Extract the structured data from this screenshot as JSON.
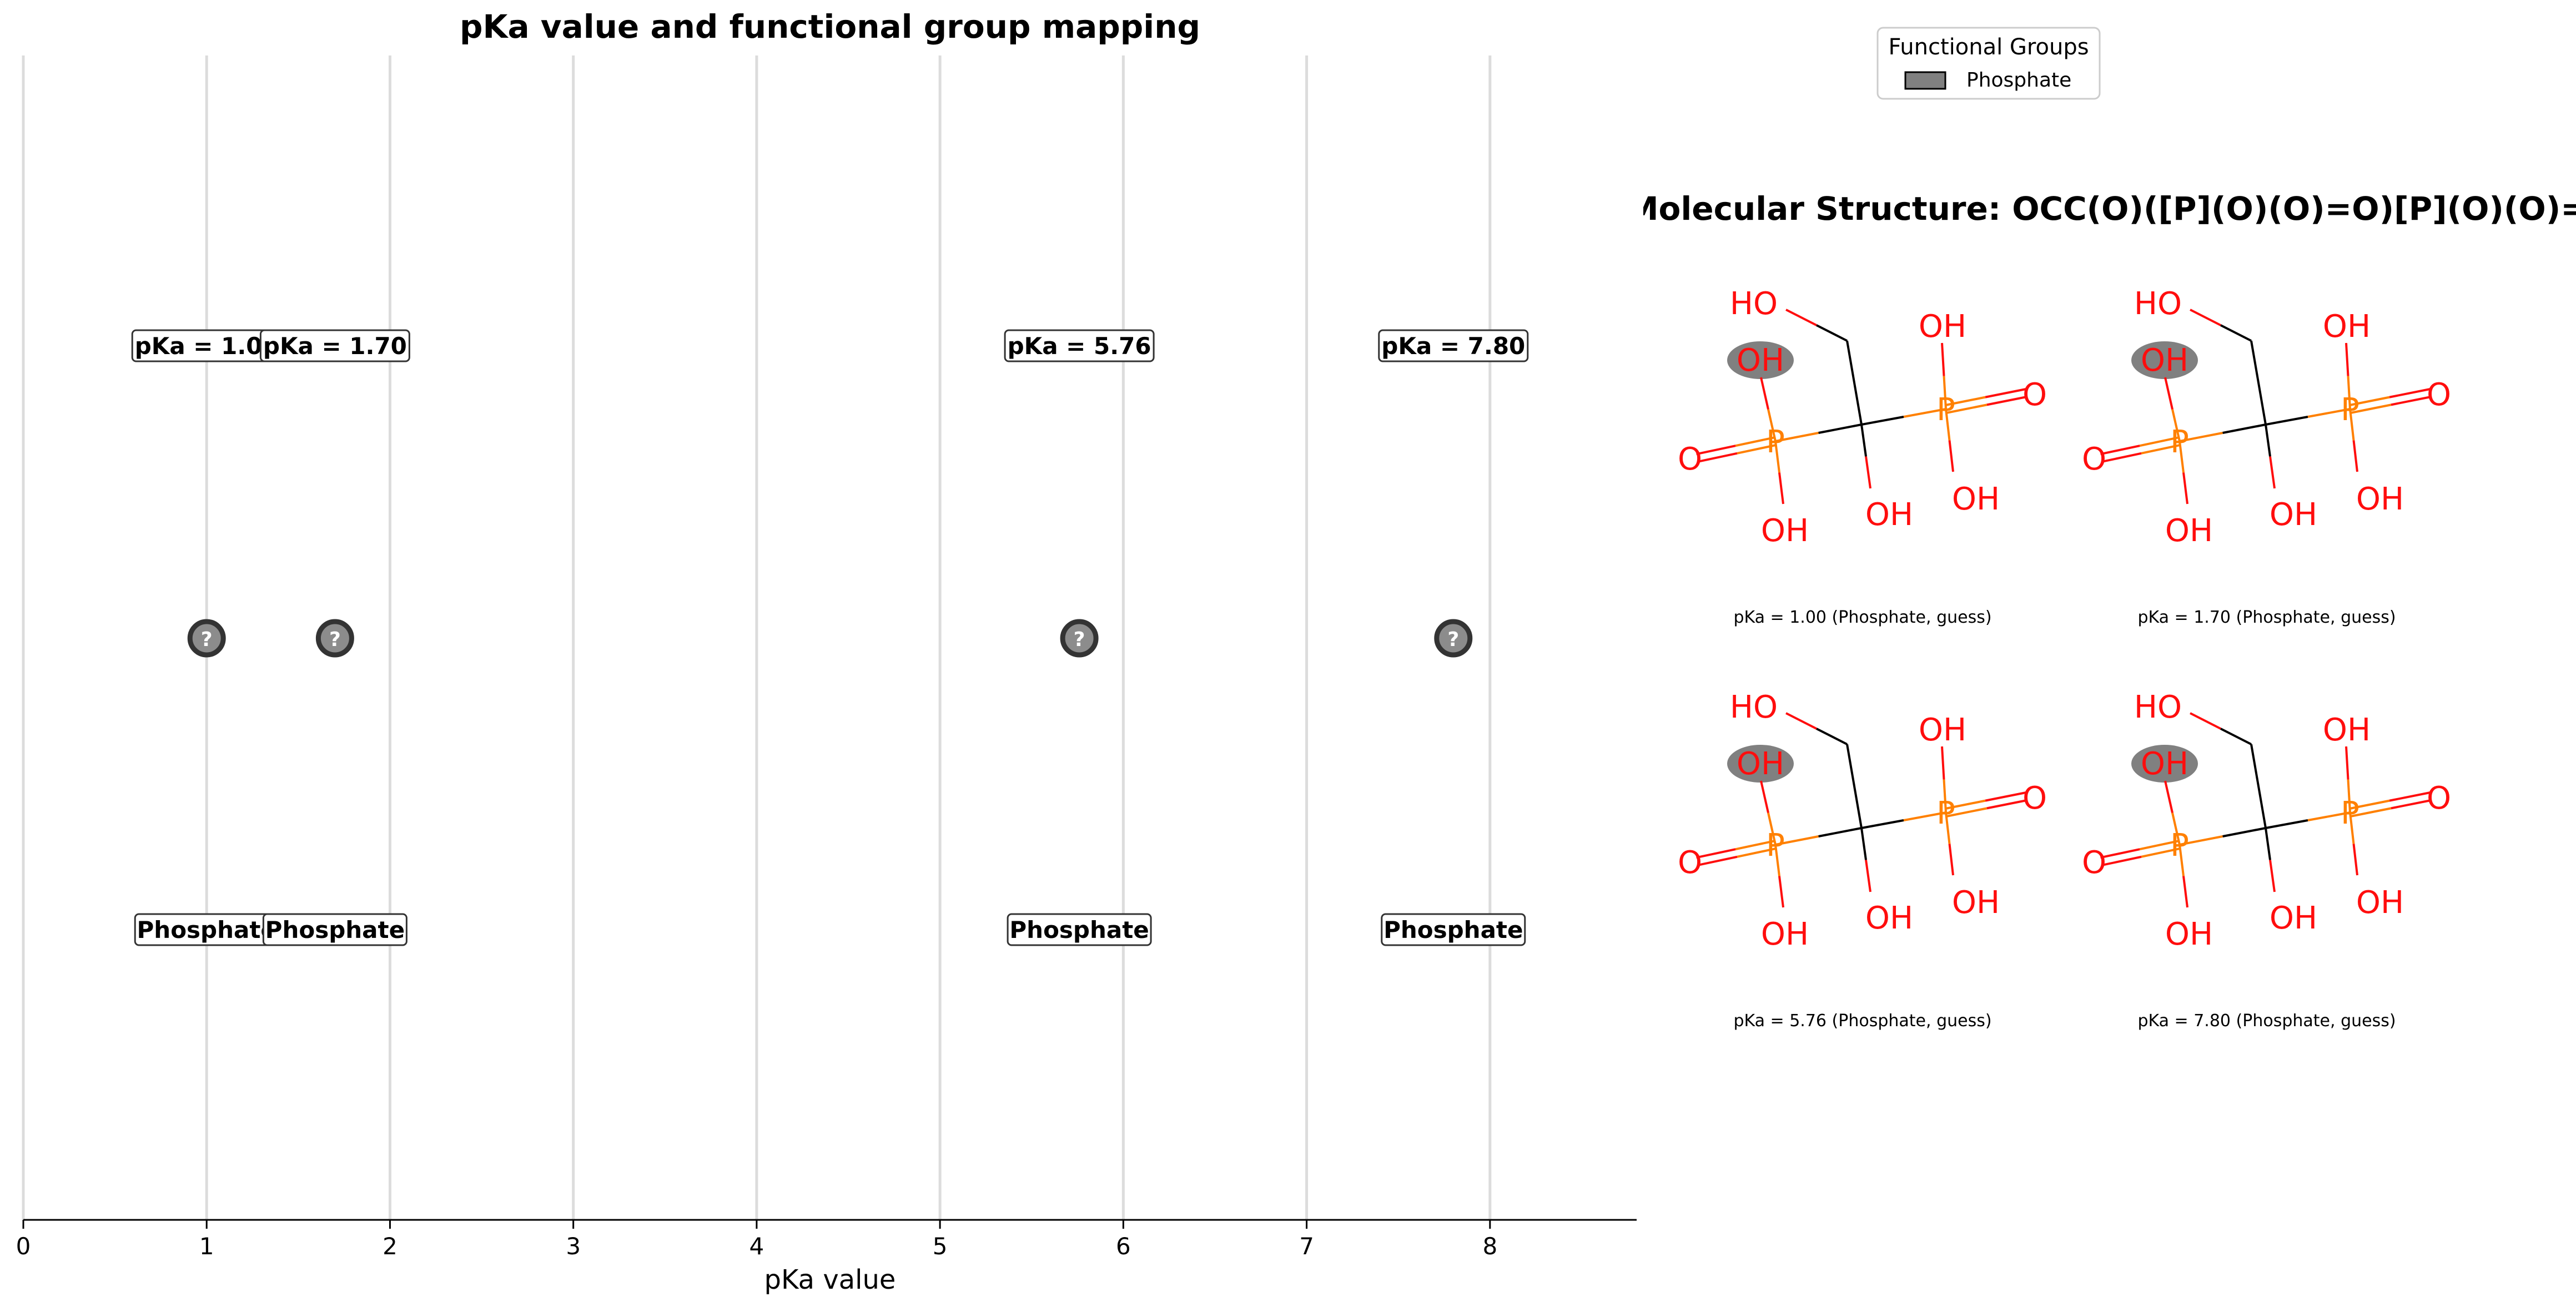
{
  "chart_data": {
    "type": "scatter",
    "title": "pKa value and functional group mapping",
    "xlabel": "pKa value",
    "xlim": [
      0,
      8.8
    ],
    "xticks": [
      "0",
      "1",
      "2",
      "3",
      "4",
      "5",
      "6",
      "7",
      "8"
    ],
    "grid": "vertical",
    "points": [
      {
        "pka": 1.0,
        "pka_label": "pKa = 1.00",
        "group": "Phosphate",
        "marker": "?"
      },
      {
        "pka": 1.7,
        "pka_label": "pKa = 1.70",
        "group": "Phosphate",
        "marker": "?"
      },
      {
        "pka": 5.76,
        "pka_label": "pKa = 5.76",
        "group": "Phosphate",
        "marker": "?"
      },
      {
        "pka": 7.8,
        "pka_label": "pKa = 7.80",
        "group": "Phosphate",
        "marker": "?"
      }
    ]
  },
  "legend": {
    "title": "Functional Groups",
    "entries": [
      {
        "label": "Phosphate",
        "color": "#808080"
      }
    ],
    "placement": "top-right"
  },
  "molecule": {
    "title": "Molecular Structure: OCC(O)([P](O)(O)=O)[P](O)(O)=O",
    "captions": [
      "pKa = 1.00 (Phosphate, guess)",
      "pKa = 1.70 (Phosphate, guess)",
      "pKa = 5.76 (Phosphate, guess)",
      "pKa = 7.80 (Phosphate, guess)"
    ],
    "atom_labels": {
      "ho": "HO",
      "oh": "OH",
      "p": "P",
      "o": "O"
    },
    "colors": {
      "oxygen": "#ff0d0d",
      "phosphorus": "#ff8000",
      "carbon": "#000000",
      "highlight": "#808080"
    }
  }
}
